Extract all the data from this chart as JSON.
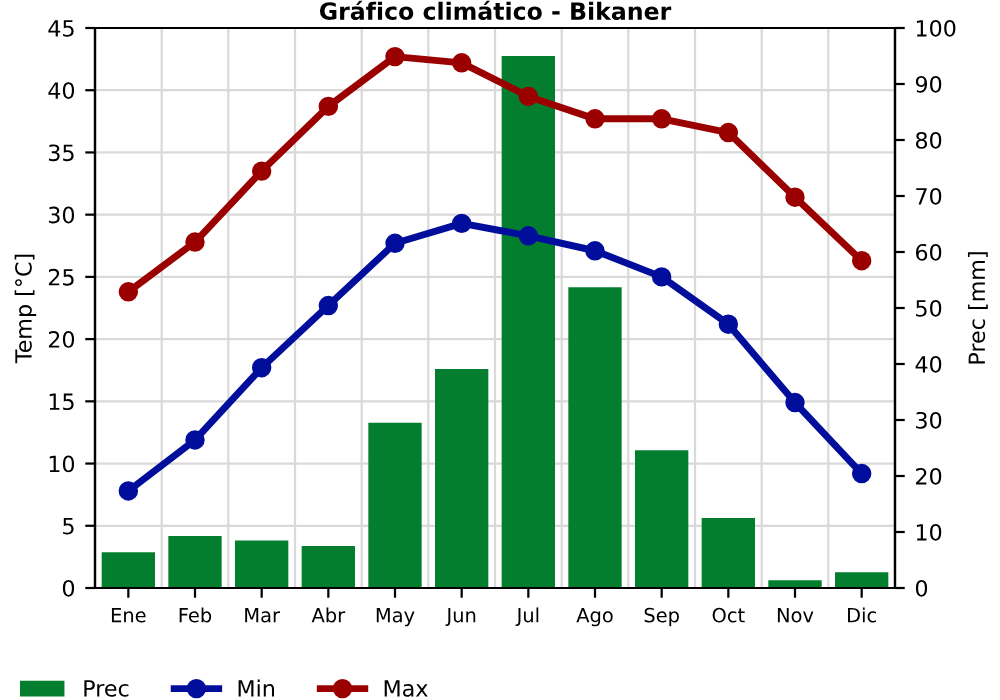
{
  "chart_data": {
    "type": "line",
    "title": "Gráfico climático - Bikaner",
    "ylabel": "Temp [°C]",
    "y2label": "Prec [mm]",
    "categories": [
      "Ene",
      "Feb",
      "Mar",
      "Abr",
      "May",
      "Jun",
      "Jul",
      "Ago",
      "Sep",
      "Oct",
      "Nov",
      "Dic"
    ],
    "series": [
      {
        "name": "Prec",
        "type": "bar",
        "axis": "y2",
        "color": "#037e2f",
        "values": [
          6.4,
          9.3,
          8.5,
          7.5,
          29.5,
          39.1,
          95,
          53.7,
          24.6,
          12.5,
          1.4,
          2.8
        ]
      },
      {
        "name": "Min",
        "color": "#000e9b",
        "values": [
          7.8,
          11.9,
          17.7,
          22.7,
          27.7,
          29.3,
          28.3,
          27.1,
          25.0,
          21.2,
          14.9,
          9.2
        ]
      },
      {
        "name": "Max",
        "color": "#9b0000",
        "values": [
          23.8,
          27.8,
          33.5,
          38.7,
          42.7,
          42.2,
          39.5,
          37.7,
          37.7,
          36.6,
          31.4,
          26.3
        ]
      }
    ],
    "ylim": [
      0,
      45
    ],
    "yticks": [
      0,
      5,
      10,
      15,
      20,
      25,
      30,
      35,
      40,
      45
    ],
    "y2lim": [
      0,
      100
    ],
    "y2ticks": [
      0,
      10,
      20,
      30,
      40,
      50,
      60,
      70,
      80,
      90,
      100
    ],
    "grid": true,
    "legend": "bottom left",
    "marker": "circle",
    "line_style": "solid"
  }
}
